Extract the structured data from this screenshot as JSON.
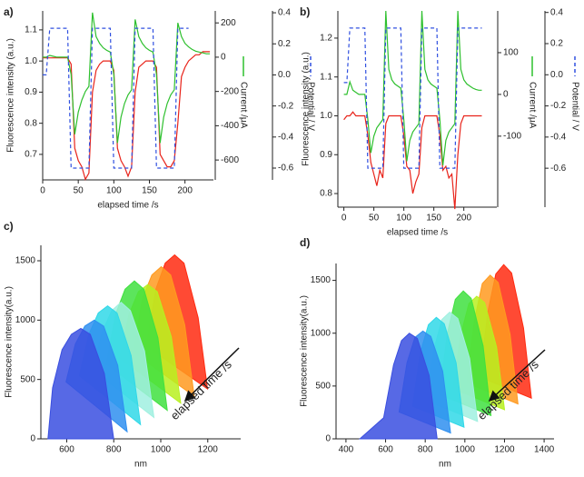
{
  "chart_data": [
    {
      "type": "line",
      "panel_label": "a)",
      "xlabel": "elapsed time /s",
      "ylabel": "Fluorescence intensity (a.u.)",
      "y2label": "Current /μA",
      "y3label": "Potential / V",
      "x": [
        0,
        5,
        10,
        15,
        20,
        25,
        30,
        35,
        40,
        45,
        50,
        55,
        60,
        65,
        70,
        75,
        80,
        85,
        90,
        95,
        100,
        105,
        110,
        115,
        120,
        125,
        130,
        135,
        140,
        145,
        150,
        155,
        160,
        165,
        170,
        175,
        180,
        185,
        190,
        195,
        200,
        205,
        210,
        215,
        220,
        225,
        230,
        235
      ],
      "xlim": [
        0,
        240
      ],
      "xticks": [
        0,
        50,
        100,
        150,
        200
      ],
      "ylim": [
        0.618,
        1.161
      ],
      "yticks": [
        0.7,
        0.8,
        0.9,
        {
          "value": 1,
          "label": "1.0"
        },
        1.1
      ],
      "y2lim": [
        -716,
        270
      ],
      "y2ticks": [
        200,
        0,
        -200,
        -400,
        -600
      ],
      "y3lim": [
        -0.676,
        0.412
      ],
      "y3ticks": [
        0.4,
        0.2,
        {
          "value": 0,
          "label": "0.0"
        },
        -0.2,
        -0.4,
        -0.6
      ],
      "series": [
        {
          "color": "#e8231a",
          "values": [
            1.01,
            1.01,
            1.01,
            1.01,
            1.01,
            1.01,
            1.01,
            1.01,
            0.99,
            0.72,
            0.68,
            0.66,
            0.62,
            0.64,
            0.9,
            0.97,
            0.99,
            1.0,
            1.0,
            1.0,
            0.97,
            0.72,
            0.68,
            0.66,
            0.63,
            0.66,
            0.9,
            0.98,
            0.99,
            1.0,
            1.0,
            1.0,
            0.98,
            0.7,
            0.68,
            0.66,
            0.66,
            0.68,
            0.8,
            0.95,
            0.98,
            1.0,
            1.01,
            1.02,
            1.02,
            1.03,
            1.03,
            1.03
          ]
        },
        {
          "color": "#2ec02e",
          "axis": "y2",
          "values": [
            0,
            0,
            10,
            5,
            0,
            0,
            0,
            0,
            -100,
            -450,
            -320,
            -250,
            -200,
            -170,
            260,
            120,
            80,
            55,
            40,
            30,
            -100,
            -500,
            -350,
            -270,
            -220,
            -190,
            220,
            120,
            80,
            55,
            40,
            30,
            -100,
            -500,
            -350,
            -270,
            -220,
            -190,
            200,
            120,
            80,
            60,
            45,
            35,
            30,
            25,
            20,
            20
          ]
        },
        {
          "color": "#3050e0",
          "axis": "y3",
          "dash": true,
          "values": [
            0,
            0,
            0.3,
            0.3,
            0.3,
            0.3,
            0.3,
            0.3,
            -0.6,
            -0.6,
            -0.6,
            -0.6,
            -0.6,
            -0.6,
            0.3,
            0.3,
            0.3,
            0.3,
            0.3,
            0.3,
            -0.6,
            -0.6,
            -0.6,
            -0.6,
            -0.6,
            -0.6,
            0.3,
            0.3,
            0.3,
            0.3,
            0.3,
            0.3,
            -0.6,
            -0.6,
            -0.6,
            -0.6,
            -0.6,
            -0.6,
            0.3,
            0.3,
            0.3,
            0.3,
            null,
            null,
            null,
            null,
            null,
            null
          ]
        }
      ]
    },
    {
      "type": "line",
      "panel_label": "b)",
      "xlabel": "elapsed time /s",
      "ylabel": "Fluorescence intensity (a.u.)",
      "y2label": "Current /μA",
      "y3label": "Potential / V",
      "x": [
        0,
        5,
        10,
        15,
        20,
        25,
        30,
        35,
        40,
        45,
        50,
        55,
        60,
        65,
        70,
        75,
        80,
        85,
        90,
        95,
        100,
        105,
        110,
        115,
        120,
        125,
        130,
        135,
        140,
        145,
        150,
        155,
        160,
        165,
        170,
        175,
        180,
        185,
        190,
        195,
        200,
        205,
        210,
        215,
        220,
        225,
        230
      ],
      "xlim": [
        -10,
        255
      ],
      "xticks": [
        0,
        50,
        100,
        150,
        200
      ],
      "ylim": [
        0.765,
        1.27
      ],
      "yticks": [
        0.8,
        0.9,
        {
          "value": 1,
          "label": "1.0"
        },
        1.1,
        1.2
      ],
      "y2lim": [
        -270,
        200
      ],
      "y2ticks": [
        100,
        0,
        -100
      ],
      "y3lim": [
        -0.85,
        0.41
      ],
      "y3ticks": [
        0.4,
        0.2,
        {
          "value": 0,
          "label": "0.0"
        },
        -0.2,
        -0.4,
        -0.6
      ],
      "series": [
        {
          "color": "#e8231a",
          "values": [
            0.99,
            1.0,
            1.0,
            1.01,
            1.0,
            1.0,
            1.0,
            1.0,
            0.95,
            0.88,
            0.85,
            0.82,
            0.86,
            0.84,
            0.98,
            1.0,
            1.0,
            1.0,
            1.0,
            1.0,
            0.95,
            0.87,
            0.86,
            0.8,
            0.83,
            0.85,
            0.97,
            1.0,
            1.0,
            1.0,
            1.0,
            1.0,
            0.95,
            0.86,
            0.87,
            0.84,
            0.85,
            0.76,
            0.9,
            0.98,
            1.0,
            1.0,
            1.0,
            1.0,
            1.0,
            1.0,
            1.0
          ]
        },
        {
          "color": "#2ec02e",
          "axis": "y2",
          "values": [
            0,
            0,
            30,
            10,
            5,
            0,
            0,
            0,
            -60,
            -140,
            -100,
            -80,
            -70,
            -60,
            200,
            60,
            35,
            25,
            20,
            15,
            -60,
            -160,
            -110,
            -90,
            -80,
            -70,
            200,
            60,
            35,
            25,
            20,
            15,
            -60,
            -170,
            -110,
            -90,
            -80,
            -70,
            200,
            60,
            35,
            25,
            20,
            15,
            12,
            10,
            10
          ]
        },
        {
          "color": "#3050e0",
          "axis": "y3",
          "dash": true,
          "values": [
            -0.05,
            -0.05,
            0.3,
            0.3,
            0.3,
            0.3,
            0.3,
            0.3,
            -0.6,
            -0.6,
            -0.6,
            -0.6,
            -0.6,
            -0.6,
            0.3,
            0.3,
            0.3,
            0.3,
            0.3,
            0.3,
            -0.6,
            -0.6,
            -0.6,
            -0.6,
            -0.6,
            -0.6,
            0.3,
            0.3,
            0.3,
            0.3,
            0.3,
            0.3,
            -0.6,
            -0.6,
            -0.6,
            -0.6,
            -0.6,
            -0.6,
            0.3,
            0.3,
            0.3,
            0.3,
            0.3,
            0.3,
            0.3,
            0.3,
            0.3
          ]
        }
      ]
    },
    {
      "type": "waterfall",
      "panel_label": "c)",
      "xlabel": "nm",
      "ylabel": "Fluorescence intensity(a.u.)",
      "annotation": "elapsed time /s",
      "xlim": [
        490,
        1340
      ],
      "xticks": [
        600,
        800,
        1000,
        1200
      ],
      "ylim": [
        0,
        1630
      ],
      "yticks": [
        0,
        500,
        1000,
        1500
      ],
      "series": [
        {
          "color": "#3a4fe0",
          "x": [
            520,
            540,
            580,
            620,
            660,
            700,
            760,
            800
          ],
          "values": [
            0,
            430,
            750,
            880,
            930,
            880,
            550,
            0
          ]
        },
        {
          "color": "#2f8ff0",
          "x": [
            597,
            637,
            677,
            717,
            757,
            817,
            857
          ],
          "values": [
            480,
            800,
            950,
            1000,
            950,
            620,
            60
          ]
        },
        {
          "color": "#30d8e8",
          "x": [
            654,
            694,
            734,
            774,
            814,
            874,
            914
          ],
          "values": [
            530,
            880,
            1060,
            1120,
            1060,
            700,
            120
          ]
        },
        {
          "color": "#a0f0e0",
          "x": [
            711,
            751,
            791,
            831,
            871,
            931,
            971
          ],
          "values": [
            580,
            900,
            1080,
            1150,
            1080,
            740,
            180
          ]
        },
        {
          "color": "#40e040",
          "x": [
            768,
            808,
            848,
            888,
            928,
            988,
            1028
          ],
          "values": [
            630,
            1050,
            1260,
            1330,
            1260,
            850,
            240
          ]
        },
        {
          "color": "#b8f020",
          "x": [
            825,
            865,
            905,
            945,
            985,
            1045,
            1085
          ],
          "values": [
            680,
            1050,
            1240,
            1300,
            1240,
            860,
            300
          ]
        },
        {
          "color": "#ff9a20",
          "x": [
            882,
            922,
            962,
            1002,
            1042,
            1102,
            1142
          ],
          "values": [
            730,
            1180,
            1380,
            1450,
            1380,
            960,
            360
          ]
        },
        {
          "color": "#ff2a10",
          "x": [
            939,
            979,
            1019,
            1059,
            1099,
            1159,
            1199
          ],
          "values": [
            780,
            1260,
            1480,
            1550,
            1480,
            1020,
            420
          ]
        }
      ]
    },
    {
      "type": "waterfall",
      "panel_label": "d)",
      "xlabel": "nm",
      "ylabel": "Fluorescence intensity(a.u.)",
      "annotation": "elapsed time /s",
      "xlim": [
        350,
        1450
      ],
      "xticks": [
        400,
        600,
        800,
        1000,
        1200,
        1400
      ],
      "ylim": [
        0,
        1660
      ],
      "yticks": [
        0,
        500,
        1000,
        1500
      ],
      "series": [
        {
          "color": "#3a4fe0",
          "x": [
            470,
            590,
            640,
            680,
            720,
            760,
            820,
            860
          ],
          "values": [
            0,
            200,
            700,
            930,
            1000,
            950,
            600,
            0
          ]
        },
        {
          "color": "#2f8ff0",
          "x": [
            668,
            708,
            748,
            788,
            828,
            888,
            928
          ],
          "values": [
            255,
            720,
            960,
            1020,
            970,
            640,
            55
          ]
        },
        {
          "color": "#30d8e8",
          "x": [
            736,
            776,
            816,
            856,
            896,
            956,
            996
          ],
          "values": [
            310,
            820,
            1080,
            1150,
            1090,
            720,
            110
          ]
        },
        {
          "color": "#a0f0e0",
          "x": [
            804,
            844,
            884,
            924,
            964,
            1024,
            1064
          ],
          "values": [
            365,
            850,
            1130,
            1200,
            1140,
            760,
            165
          ]
        },
        {
          "color": "#40e040",
          "x": [
            872,
            912,
            952,
            992,
            1032,
            1092,
            1132
          ],
          "values": [
            420,
            1000,
            1320,
            1400,
            1330,
            880,
            220
          ]
        },
        {
          "color": "#b8f020",
          "x": [
            940,
            980,
            1020,
            1060,
            1100,
            1160,
            1200
          ],
          "values": [
            475,
            990,
            1280,
            1350,
            1290,
            870,
            275
          ]
        },
        {
          "color": "#ff9a20",
          "x": [
            1008,
            1048,
            1088,
            1128,
            1168,
            1228,
            1268
          ],
          "values": [
            530,
            1120,
            1470,
            1550,
            1480,
            990,
            330
          ]
        },
        {
          "color": "#ff2a10",
          "x": [
            1076,
            1116,
            1156,
            1196,
            1236,
            1296,
            1336
          ],
          "values": [
            585,
            1200,
            1560,
            1650,
            1570,
            1050,
            385
          ]
        }
      ]
    }
  ]
}
